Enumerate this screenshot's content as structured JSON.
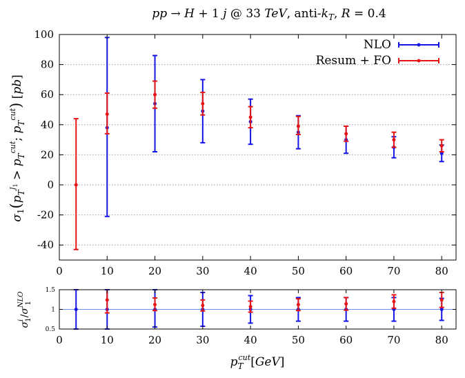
{
  "chart_data": [
    {
      "type": "scatter",
      "title": "pp → H + 1 j @ 33 TeV, anti-kT, R = 0.4",
      "xlabel": "p_T^cut [GeV]",
      "ylabel": "σ1(p_T^J1 > p_T^cut ; p_T^cut) [pb]",
      "xlim": [
        0,
        83
      ],
      "ylim": [
        -50,
        100
      ],
      "x_ticks": [
        "0",
        "10",
        "20",
        "30",
        "40",
        "50",
        "60",
        "70",
        "80"
      ],
      "y_ticks": [
        "-40",
        "-20",
        "0",
        "20",
        "40",
        "60",
        "80",
        "100"
      ],
      "grid": "horizontal dotted",
      "legend": "top-right",
      "series": [
        {
          "name": "NLO",
          "color": "#1414e6",
          "points": [
            {
              "x": 10,
              "y": 38,
              "err_low": 59,
              "err_high": 60
            },
            {
              "x": 20,
              "y": 54,
              "err_low": 32,
              "err_high": 32
            },
            {
              "x": 30,
              "y": 49,
              "err_low": 21,
              "err_high": 21
            },
            {
              "x": 40,
              "y": 42,
              "err_low": 15,
              "err_high": 15
            },
            {
              "x": 50,
              "y": 35,
              "err_low": 11,
              "err_high": 11
            },
            {
              "x": 60,
              "y": 30,
              "err_low": 9,
              "err_high": 9
            },
            {
              "x": 70,
              "y": 25,
              "err_low": 7,
              "err_high": 7
            },
            {
              "x": 80,
              "y": 21,
              "err_low": 5.5,
              "err_high": 5.5
            }
          ]
        },
        {
          "name": "Resum + FO",
          "color": "#e61414",
          "points": [
            {
              "x": 3.5,
              "y": 0,
              "err_low": 43,
              "err_high": 44
            },
            {
              "x": 10,
              "y": 47,
              "err_low": 13,
              "err_high": 14
            },
            {
              "x": 20,
              "y": 60,
              "err_low": 9,
              "err_high": 9
            },
            {
              "x": 30,
              "y": 54,
              "err_low": 7.5,
              "err_high": 7.5
            },
            {
              "x": 40,
              "y": 45,
              "err_low": 7,
              "err_high": 7
            },
            {
              "x": 50,
              "y": 39,
              "err_low": 5.5,
              "err_high": 6.5
            },
            {
              "x": 60,
              "y": 34,
              "err_low": 5,
              "err_high": 5
            },
            {
              "x": 70,
              "y": 30,
              "err_low": 5,
              "err_high": 5
            },
            {
              "x": 80,
              "y": 26,
              "err_low": 4,
              "err_high": 4
            }
          ]
        }
      ]
    },
    {
      "type": "scatter",
      "xlabel": "p_T^cut [GeV]",
      "ylabel": "σ1^i / σ1^NLO",
      "xlim": [
        0,
        83
      ],
      "ylim": [
        0.5,
        1.5
      ],
      "x_ticks": [
        "0",
        "10",
        "20",
        "30",
        "40",
        "50",
        "60",
        "70",
        "80"
      ],
      "y_ticks": [
        "0.5",
        "1",
        "1.5"
      ],
      "reference_line": 1,
      "series": [
        {
          "name": "NLO",
          "color": "#1414e6",
          "points": [
            {
              "x": 3.5,
              "y": 1.0,
              "err_low": 0.5,
              "err_high": 0.5
            },
            {
              "x": 10,
              "y": 1.0,
              "err_low": 0.5,
              "err_high": 0.5
            },
            {
              "x": 20,
              "y": 1.0,
              "err_low": 0.45,
              "err_high": 0.5
            },
            {
              "x": 30,
              "y": 1.0,
              "err_low": 0.43,
              "err_high": 0.43
            },
            {
              "x": 40,
              "y": 1.0,
              "err_low": 0.35,
              "err_high": 0.35
            },
            {
              "x": 50,
              "y": 1.0,
              "err_low": 0.3,
              "err_high": 0.3
            },
            {
              "x": 60,
              "y": 1.0,
              "err_low": 0.3,
              "err_high": 0.3
            },
            {
              "x": 70,
              "y": 1.0,
              "err_low": 0.3,
              "err_high": 0.3
            },
            {
              "x": 80,
              "y": 1.0,
              "err_low": 0.28,
              "err_high": 0.28
            }
          ]
        },
        {
          "name": "Resum + FO",
          "color": "#e61414",
          "points": [
            {
              "x": 10,
              "y": 1.24,
              "err_low": 0.33,
              "err_high": 0.3
            },
            {
              "x": 20,
              "y": 1.12,
              "err_low": 0.15,
              "err_high": 0.17
            },
            {
              "x": 30,
              "y": 1.1,
              "err_low": 0.14,
              "err_high": 0.14
            },
            {
              "x": 40,
              "y": 1.07,
              "err_low": 0.14,
              "err_high": 0.14
            },
            {
              "x": 50,
              "y": 1.12,
              "err_low": 0.15,
              "err_high": 0.15
            },
            {
              "x": 60,
              "y": 1.14,
              "err_low": 0.16,
              "err_high": 0.16
            },
            {
              "x": 70,
              "y": 1.2,
              "err_low": 0.17,
              "err_high": 0.17
            },
            {
              "x": 80,
              "y": 1.24,
              "err_low": 0.19,
              "err_high": 0.19
            }
          ]
        }
      ]
    }
  ]
}
